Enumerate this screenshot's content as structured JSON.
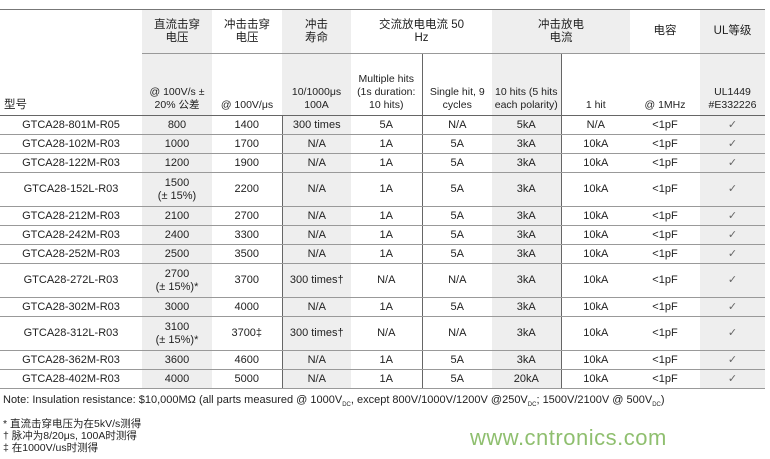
{
  "headers": {
    "model": "型号",
    "dc_breakdown": "直流击穿电压",
    "dc_cond": "@ 100V/s ± 20% 公差",
    "impulse_breakdown": "冲击击穿电压",
    "impulse_cond": "@ 100V/μs",
    "impulse_life": "冲击寿命",
    "impulse_life_cond": "10/1000μs 100A",
    "ac_discharge": "交流放电电流 50 Hz",
    "ac_multiple": "Multiple hits (1s duration: 10 hits)",
    "ac_single": "Single hit, 9 cycles",
    "impulse_discharge": "冲击放电电流",
    "id_10hits": "10 hits (5 hits each polarity)",
    "id_1hit": "1 hit",
    "capacitance": "电容",
    "cap_cond": "@ 1MHz",
    "ul": "UL等级",
    "ul_cond": "UL1449 #E332226"
  },
  "rows": [
    {
      "model": "GTCA28-801M-R05",
      "dc": "800",
      "dc2": "",
      "imp": "1400",
      "life": "300 times",
      "acm": "5A",
      "acs": "N/A",
      "i10": "5kA",
      "i1": "N/A",
      "cap": "<1pF",
      "ul": "✓"
    },
    {
      "model": "GTCA28-102M-R03",
      "dc": "1000",
      "dc2": "",
      "imp": "1700",
      "life": "N/A",
      "acm": "1A",
      "acs": "5A",
      "i10": "3kA",
      "i1": "10kA",
      "cap": "<1pF",
      "ul": "✓"
    },
    {
      "model": "GTCA28-122M-R03",
      "dc": "1200",
      "dc2": "",
      "imp": "1900",
      "life": "N/A",
      "acm": "1A",
      "acs": "5A",
      "i10": "3kA",
      "i1": "10kA",
      "cap": "<1pF",
      "ul": "✓"
    },
    {
      "model": "GTCA28-152L-R03",
      "dc": "1500",
      "dc2": "(± 15%)",
      "imp": "2200",
      "life": "N/A",
      "acm": "1A",
      "acs": "5A",
      "i10": "3kA",
      "i1": "10kA",
      "cap": "<1pF",
      "ul": "✓"
    },
    {
      "model": "GTCA28-212M-R03",
      "dc": "2100",
      "dc2": "",
      "imp": "2700",
      "life": "N/A",
      "acm": "1A",
      "acs": "5A",
      "i10": "3kA",
      "i1": "10kA",
      "cap": "<1pF",
      "ul": "✓"
    },
    {
      "model": "GTCA28-242M-R03",
      "dc": "2400",
      "dc2": "",
      "imp": "3300",
      "life": "N/A",
      "acm": "1A",
      "acs": "5A",
      "i10": "3kA",
      "i1": "10kA",
      "cap": "<1pF",
      "ul": "✓"
    },
    {
      "model": "GTCA28-252M-R03",
      "dc": "2500",
      "dc2": "",
      "imp": "3500",
      "life": "N/A",
      "acm": "1A",
      "acs": "5A",
      "i10": "3kA",
      "i1": "10kA",
      "cap": "<1pF",
      "ul": "✓"
    },
    {
      "model": "GTCA28-272L-R03",
      "dc": "2700",
      "dc2": "(± 15%)*",
      "imp": "3700",
      "life": "300 times†",
      "acm": "N/A",
      "acs": "N/A",
      "i10": "3kA",
      "i1": "10kA",
      "cap": "<1pF",
      "ul": "✓"
    },
    {
      "model": "GTCA28-302M-R03",
      "dc": "3000",
      "dc2": "",
      "imp": "4000",
      "life": "N/A",
      "acm": "1A",
      "acs": "5A",
      "i10": "3kA",
      "i1": "10kA",
      "cap": "<1pF",
      "ul": "✓"
    },
    {
      "model": "GTCA28-312L-R03",
      "dc": "3100",
      "dc2": "(± 15%)*",
      "imp": "3700‡",
      "life": "300 times†",
      "acm": "N/A",
      "acs": "N/A",
      "i10": "3kA",
      "i1": "10kA",
      "cap": "<1pF",
      "ul": "✓"
    },
    {
      "model": "GTCA28-362M-R03",
      "dc": "3600",
      "dc2": "",
      "imp": "4600",
      "life": "N/A",
      "acm": "1A",
      "acs": "5A",
      "i10": "3kA",
      "i1": "10kA",
      "cap": "<1pF",
      "ul": "✓"
    },
    {
      "model": "GTCA28-402M-R03",
      "dc": "4000",
      "dc2": "",
      "imp": "5000",
      "life": "N/A",
      "acm": "1A",
      "acs": "5A",
      "i10": "20kA",
      "i1": "10kA",
      "cap": "<1pF",
      "ul": "✓"
    }
  ],
  "note": {
    "p1": "Note: Insulation resistance: $10,000MΩ (all parts measured @ 1000V",
    "p2": ", except 800V/1000V/1200V @250V",
    "p3": "; 1500V/2100V @ 500V",
    "p4": ")",
    "sub": "DC"
  },
  "footnotes": [
    "* 直流击穿电压为在5kV/s测得",
    "† 脉冲为8/20μs, 100A时测得",
    "‡ 在1000V/us时测得"
  ],
  "watermark": "www.cntronics.com"
}
